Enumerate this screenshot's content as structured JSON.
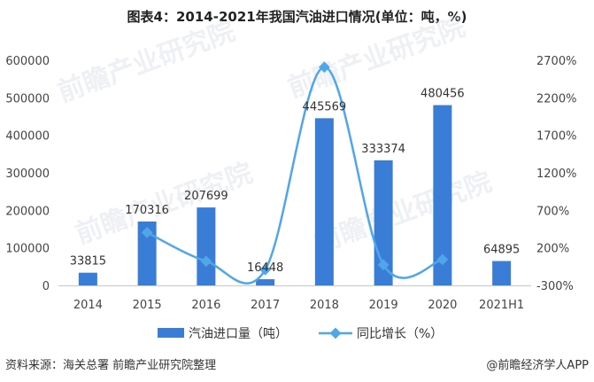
{
  "chart_data": {
    "type": "bar",
    "title": "图表4：2014-2021年我国汽油进口情况(单位：吨，%)",
    "categories": [
      "2014",
      "2015",
      "2016",
      "2017",
      "2018",
      "2019",
      "2020",
      "2021H1"
    ],
    "series": [
      {
        "name": "汽油进口量（吨）",
        "type": "bar",
        "axis": "left",
        "values": [
          33815,
          170316,
          207699,
          16448,
          445569,
          333374,
          480456,
          64895
        ],
        "labels": [
          "33815",
          "170316",
          "207699",
          "16448",
          "445569",
          "333374",
          "480456",
          "64895"
        ],
        "color": "#3a7dd6"
      },
      {
        "name": "同比增长（%）",
        "type": "line",
        "axis": "right",
        "values": [
          null,
          404,
          22,
          -92,
          2609,
          -25,
          44,
          null
        ],
        "color": "#4fa6e8"
      }
    ],
    "y_left": {
      "min": 0,
      "max": 600000,
      "ticks": [
        0,
        100000,
        200000,
        300000,
        400000,
        500000,
        600000
      ],
      "tick_labels": [
        "0",
        "100000",
        "200000",
        "300000",
        "400000",
        "500000",
        "600000"
      ]
    },
    "y_right": {
      "min": -300,
      "max": 2700,
      "ticks": [
        -300,
        200,
        700,
        1200,
        1700,
        2200,
        2700
      ],
      "tick_labels": [
        "-300%",
        "200%",
        "700%",
        "1200%",
        "1700%",
        "2200%",
        "2700%"
      ]
    },
    "legend_position": "bottom",
    "grid": false
  },
  "footer": {
    "source": "资料来源：海关总署 前瞻产业研究院整理",
    "brand": "@前瞻经济学人APP"
  },
  "watermark": "前瞻产业研究院"
}
